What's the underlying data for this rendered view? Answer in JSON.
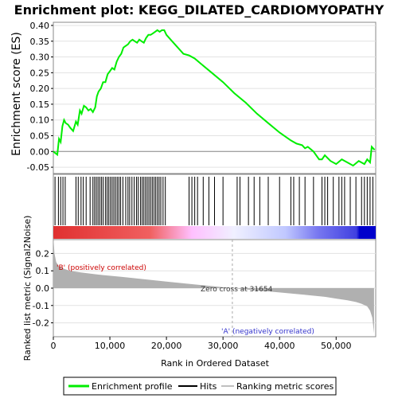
{
  "chart_data": [
    {
      "type": "line",
      "title": "Enrichment plot: KEGG_DILATED_CARDIOMYOPATHY",
      "ylabel": "Enrichment score (ES)",
      "ylim": [
        -0.07,
        0.41
      ],
      "yticks": [
        -0.05,
        0.0,
        0.05,
        0.1,
        0.15,
        0.2,
        0.25,
        0.3,
        0.35,
        0.4
      ],
      "ytick_labels": [
        "-0.05",
        "0.00",
        "0.05",
        "0.10",
        "0.15",
        "0.20",
        "0.25",
        "0.30",
        "0.35",
        "0.40"
      ],
      "xlim": [
        0,
        57000
      ],
      "grid": true,
      "series": [
        {
          "name": "Enrichment profile",
          "color": "#00ee00",
          "x": [
            0,
            700,
            1000,
            1300,
            1600,
            1900,
            2200,
            2600,
            3000,
            3500,
            4000,
            4300,
            4700,
            5000,
            5400,
            5800,
            6200,
            6600,
            7000,
            7400,
            7700,
            8000,
            8400,
            8800,
            9200,
            9600,
            10000,
            10400,
            10800,
            11200,
            11600,
            12000,
            12400,
            12800,
            13200,
            13600,
            14000,
            14400,
            14800,
            15200,
            15600,
            16000,
            16400,
            16800,
            17200,
            17600,
            18000,
            18400,
            18800,
            19200,
            19600,
            20000,
            21000,
            22000,
            23000,
            24000,
            25000,
            26000,
            28000,
            30000,
            32000,
            34000,
            36000,
            38000,
            40000,
            42000,
            43000,
            44000,
            44500,
            45000,
            46000,
            47000,
            47500,
            48000,
            49000,
            50000,
            51000,
            52000,
            53000,
            54000,
            55000,
            55500,
            56000,
            56300,
            56800
          ],
          "values": [
            0.0,
            -0.01,
            0.04,
            0.03,
            0.08,
            0.1,
            0.09,
            0.085,
            0.075,
            0.065,
            0.095,
            0.085,
            0.13,
            0.12,
            0.145,
            0.14,
            0.13,
            0.135,
            0.125,
            0.14,
            0.175,
            0.19,
            0.2,
            0.22,
            0.22,
            0.245,
            0.255,
            0.265,
            0.26,
            0.285,
            0.3,
            0.31,
            0.33,
            0.335,
            0.34,
            0.35,
            0.355,
            0.35,
            0.345,
            0.355,
            0.35,
            0.345,
            0.36,
            0.37,
            0.37,
            0.375,
            0.38,
            0.385,
            0.38,
            0.385,
            0.385,
            0.37,
            0.35,
            0.33,
            0.31,
            0.305,
            0.295,
            0.28,
            0.25,
            0.22,
            0.185,
            0.155,
            0.12,
            0.09,
            0.06,
            0.035,
            0.025,
            0.02,
            0.01,
            0.015,
            0.0,
            -0.025,
            -0.025,
            -0.012,
            -0.03,
            -0.04,
            -0.025,
            -0.035,
            -0.045,
            -0.03,
            -0.04,
            -0.025,
            -0.035,
            0.015,
            0.005
          ]
        }
      ]
    },
    {
      "type": "hits",
      "name": "Hits",
      "xlim": [
        0,
        57000
      ],
      "hit_positions": [
        300,
        900,
        1300,
        1700,
        2100,
        4000,
        4400,
        4900,
        5300,
        5800,
        6500,
        7000,
        7300,
        7600,
        7900,
        8200,
        8500,
        8800,
        9200,
        9500,
        9800,
        10100,
        10400,
        10700,
        11000,
        11300,
        11600,
        11900,
        12300,
        12800,
        13200,
        13500,
        13900,
        14300,
        14700,
        15000,
        15400,
        15700,
        16000,
        16300,
        16600,
        16900,
        17200,
        17500,
        17800,
        18100,
        18400,
        18700,
        19000,
        19400,
        19800,
        24000,
        24500,
        25000,
        25500,
        26500,
        27500,
        28500,
        30000,
        32500,
        33000,
        34500,
        35500,
        36500,
        38000,
        40000,
        42000,
        42500,
        43500,
        44500,
        46000,
        47500,
        48000,
        48500,
        49500,
        50500,
        51000,
        51500,
        52500,
        53500,
        54500,
        55000,
        55500,
        56000,
        56500
      ],
      "ranking_colors": [
        "#ff0000",
        "#ff8080",
        "#ffe0e0",
        "#ffffff",
        "#e0e0ff",
        "#8080ff",
        "#0000ff"
      ]
    },
    {
      "type": "area",
      "ylabel": "Ranked list metric (Signal2Noise)",
      "xlabel": "Rank in Ordered Dataset",
      "ylim": [
        -0.28,
        0.28
      ],
      "yticks": [
        -0.2,
        -0.1,
        0.0,
        0.1,
        0.2
      ],
      "ytick_labels": [
        "-0.2",
        "-0.1",
        "0.0",
        "0.1",
        "0.2"
      ],
      "xlim": [
        0,
        57000
      ],
      "xticks": [
        0,
        10000,
        20000,
        30000,
        40000,
        50000
      ],
      "xtick_labels": [
        "0",
        "10,000",
        "20,000",
        "30,000",
        "40,000",
        "50,000"
      ],
      "x": [
        0,
        200,
        500,
        1000,
        2000,
        3000,
        5000,
        8000,
        12000,
        16000,
        20000,
        24000,
        28000,
        31654,
        35000,
        40000,
        45000,
        48000,
        50000,
        52000,
        53500,
        54500,
        55500,
        56000,
        56400,
        56700
      ],
      "values": [
        0.3,
        0.2,
        0.15,
        0.125,
        0.11,
        0.1,
        0.09,
        0.078,
        0.065,
        0.052,
        0.038,
        0.025,
        0.012,
        0.0,
        -0.01,
        -0.025,
        -0.04,
        -0.05,
        -0.06,
        -0.07,
        -0.08,
        -0.09,
        -0.105,
        -0.13,
        -0.17,
        -0.26
      ],
      "fill_color": "#b0b0b0",
      "annotations": {
        "positive_label": "'B' (positively correlated)",
        "negative_label": "'A' (negatively correlated)",
        "zero_cross_label": "Zero cross at 31654",
        "zero_cross_x": 31654
      }
    }
  ],
  "legend": {
    "items": [
      {
        "label": "Enrichment profile",
        "color": "#00ee00"
      },
      {
        "label": "Hits",
        "color": "#000000"
      },
      {
        "label": "Ranking metric scores",
        "color": "#c0c0c0"
      }
    ]
  }
}
